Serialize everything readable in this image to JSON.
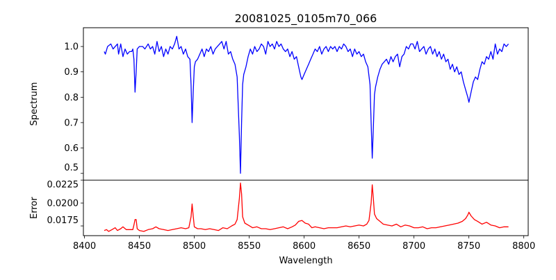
{
  "chart_data": [
    {
      "type": "line",
      "title": "20081025_0105m70_066",
      "xlabel": "",
      "ylabel": "Spectrum",
      "xlim": [
        8399,
        8804
      ],
      "ylim": [
        0.473,
        1.074
      ],
      "yticks": [
        "0.5",
        "0.6",
        "0.7",
        "0.8",
        "0.9",
        "1.0"
      ],
      "ytick_values": [
        0.5,
        0.6,
        0.7,
        0.8,
        0.9,
        1.0
      ],
      "color": "#0000ff",
      "x": [
        8418,
        8419,
        8421,
        8424,
        8426,
        8428,
        8430,
        8431,
        8433,
        8435,
        8437,
        8439,
        8441,
        8443,
        8444,
        8445,
        8446,
        8447,
        8448,
        8450,
        8453,
        8455,
        8458,
        8460,
        8462,
        8464,
        8466,
        8468,
        8470,
        8472,
        8474,
        8476,
        8478,
        8480,
        8482,
        8484,
        8486,
        8488,
        8490,
        8492,
        8494,
        8496,
        8497,
        8498,
        8499,
        8500,
        8501,
        8503,
        8505,
        8507,
        8509,
        8511,
        8513,
        8515,
        8517,
        8519,
        8521,
        8523,
        8525,
        8527,
        8529,
        8531,
        8533,
        8535,
        8537,
        8539,
        8541,
        8542,
        8543,
        8544,
        8545,
        8547,
        8549,
        8551,
        8553,
        8555,
        8557,
        8559,
        8561,
        8563,
        8565,
        8567,
        8569,
        8571,
        8573,
        8575,
        8577,
        8579,
        8581,
        8583,
        8585,
        8587,
        8589,
        8591,
        8593,
        8595,
        8597,
        8598,
        8600,
        8602,
        8604,
        8606,
        8608,
        8610,
        8612,
        8614,
        8616,
        8618,
        8620,
        8622,
        8624,
        8626,
        8628,
        8630,
        8632,
        8634,
        8636,
        8638,
        8640,
        8642,
        8644,
        8646,
        8648,
        8650,
        8652,
        8654,
        8656,
        8658,
        8660,
        8661,
        8662,
        8663,
        8664,
        8665,
        8667,
        8669,
        8671,
        8673,
        8675,
        8677,
        8679,
        8681,
        8683,
        8685,
        8687,
        8689,
        8691,
        8693,
        8695,
        8697,
        8699,
        8701,
        8703,
        8705,
        8707,
        8709,
        8711,
        8713,
        8715,
        8717,
        8719,
        8721,
        8723,
        8725,
        8727,
        8729,
        8731,
        8733,
        8735,
        8737,
        8739,
        8741,
        8743,
        8745,
        8747,
        8749,
        8750,
        8752,
        8754,
        8756,
        8758,
        8760,
        8762,
        8764,
        8766,
        8768,
        8770,
        8772,
        8774,
        8776,
        8778,
        8780,
        8782,
        8784,
        8786
      ],
      "y": [
        0.98,
        0.97,
        1.0,
        1.01,
        0.99,
        1.0,
        1.01,
        0.97,
        1.01,
        0.96,
        0.99,
        0.97,
        0.98,
        0.98,
        0.99,
        0.95,
        0.82,
        0.9,
        0.99,
        1.0,
        1.0,
        0.99,
        1.01,
        0.99,
        1.0,
        0.97,
        1.02,
        0.98,
        1.0,
        0.96,
        0.99,
        0.97,
        1.0,
        0.99,
        1.01,
        1.04,
        0.99,
        1.0,
        0.97,
        0.99,
        0.96,
        0.95,
        0.85,
        0.7,
        0.82,
        0.92,
        0.94,
        0.95,
        0.97,
        0.99,
        0.96,
        0.99,
        0.98,
        1.0,
        0.97,
        0.99,
        1.0,
        1.01,
        1.02,
        0.99,
        1.02,
        0.97,
        0.98,
        0.95,
        0.93,
        0.88,
        0.65,
        0.5,
        0.7,
        0.85,
        0.89,
        0.92,
        0.96,
        0.99,
        0.97,
        1.0,
        0.98,
        0.99,
        1.01,
        1.0,
        0.97,
        1.02,
        1.0,
        1.01,
        0.99,
        1.02,
        1.0,
        1.01,
        0.99,
        0.98,
        0.99,
        0.96,
        0.98,
        0.95,
        0.96,
        0.92,
        0.88,
        0.87,
        0.89,
        0.91,
        0.93,
        0.95,
        0.97,
        0.99,
        0.98,
        1.0,
        0.97,
        0.99,
        1.0,
        0.98,
        1.0,
        0.99,
        1.0,
        0.98,
        1.0,
        0.99,
        1.01,
        1.0,
        0.98,
        0.99,
        0.96,
        0.99,
        0.97,
        0.98,
        0.96,
        0.97,
        0.94,
        0.92,
        0.85,
        0.7,
        0.56,
        0.68,
        0.81,
        0.84,
        0.88,
        0.91,
        0.93,
        0.94,
        0.95,
        0.93,
        0.96,
        0.94,
        0.96,
        0.97,
        0.92,
        0.96,
        0.97,
        1.0,
        0.99,
        1.01,
        1.01,
        0.99,
        1.02,
        0.98,
        0.99,
        1.0,
        0.97,
        0.99,
        1.0,
        0.97,
        0.99,
        0.96,
        0.98,
        0.95,
        0.97,
        0.94,
        0.95,
        0.91,
        0.93,
        0.9,
        0.92,
        0.89,
        0.9,
        0.86,
        0.83,
        0.8,
        0.78,
        0.82,
        0.86,
        0.88,
        0.87,
        0.91,
        0.94,
        0.93,
        0.96,
        0.95,
        0.98,
        0.95,
        1.01,
        0.97,
        0.99,
        0.98,
        1.01,
        1.0,
        1.01
      ]
    },
    {
      "type": "line",
      "xlabel": "Wavelength",
      "ylabel": "Error",
      "xlim": [
        8399,
        8804
      ],
      "ylim": [
        0.01644,
        0.0225
      ],
      "xticks": [
        "8400",
        "8450",
        "8500",
        "8550",
        "8600",
        "8650",
        "8700",
        "8750",
        "8800"
      ],
      "xtick_values": [
        8400,
        8450,
        8500,
        8550,
        8600,
        8650,
        8700,
        8750,
        8800
      ],
      "yticks": [
        "0.0175",
        "0.0200",
        "0.0225"
      ],
      "ytick_values": [
        0.0175,
        0.02,
        0.0225
      ],
      "color": "#ff0000",
      "x": [
        8418,
        8420,
        8422,
        8425,
        8428,
        8430,
        8433,
        8435,
        8438,
        8441,
        8444,
        8445,
        8446,
        8447,
        8448,
        8450,
        8454,
        8458,
        8462,
        8465,
        8468,
        8472,
        8476,
        8480,
        8484,
        8488,
        8492,
        8495,
        8497,
        8498,
        8499,
        8500,
        8503,
        8506,
        8510,
        8514,
        8518,
        8522,
        8526,
        8530,
        8534,
        8537,
        8539,
        8541,
        8542,
        8543,
        8544,
        8546,
        8549,
        8553,
        8557,
        8561,
        8565,
        8569,
        8573,
        8577,
        8581,
        8585,
        8589,
        8592,
        8595,
        8598,
        8601,
        8604,
        8607,
        8610,
        8614,
        8618,
        8622,
        8626,
        8630,
        8634,
        8638,
        8642,
        8646,
        8650,
        8654,
        8657,
        8659,
        8661,
        8662,
        8663,
        8664,
        8666,
        8669,
        8672,
        8676,
        8680,
        8684,
        8688,
        8692,
        8696,
        8700,
        8704,
        8708,
        8712,
        8716,
        8720,
        8724,
        8728,
        8732,
        8736,
        8740,
        8744,
        8747,
        8749,
        8750,
        8752,
        8755,
        8758,
        8762,
        8766,
        8770,
        8774,
        8778,
        8782,
        8786
      ],
      "y": [
        0.017,
        0.0171,
        0.0169,
        0.0171,
        0.0173,
        0.017,
        0.0172,
        0.0174,
        0.0171,
        0.0171,
        0.0171,
        0.0176,
        0.0182,
        0.0182,
        0.0172,
        0.017,
        0.0169,
        0.0171,
        0.0172,
        0.0174,
        0.0172,
        0.0171,
        0.017,
        0.0171,
        0.0172,
        0.0173,
        0.0172,
        0.0173,
        0.0185,
        0.0199,
        0.0186,
        0.0174,
        0.0172,
        0.0172,
        0.0171,
        0.0172,
        0.0171,
        0.017,
        0.0173,
        0.0172,
        0.0175,
        0.0177,
        0.0182,
        0.0205,
        0.0222,
        0.021,
        0.0185,
        0.0178,
        0.0176,
        0.0173,
        0.0174,
        0.0172,
        0.0172,
        0.0171,
        0.0172,
        0.0173,
        0.0174,
        0.0172,
        0.0174,
        0.0176,
        0.018,
        0.0181,
        0.0178,
        0.0177,
        0.0173,
        0.0174,
        0.0173,
        0.0172,
        0.0173,
        0.0173,
        0.0173,
        0.0174,
        0.0175,
        0.0174,
        0.0175,
        0.0176,
        0.0175,
        0.0177,
        0.0181,
        0.02,
        0.022,
        0.0205,
        0.0188,
        0.0183,
        0.018,
        0.0177,
        0.0176,
        0.0175,
        0.0177,
        0.0174,
        0.0176,
        0.0175,
        0.0173,
        0.0173,
        0.0174,
        0.0172,
        0.0173,
        0.0173,
        0.0174,
        0.0175,
        0.0176,
        0.0177,
        0.0178,
        0.018,
        0.0183,
        0.0187,
        0.019,
        0.0186,
        0.0182,
        0.018,
        0.0177,
        0.0179,
        0.0176,
        0.0175,
        0.0173,
        0.0174,
        0.0174
      ]
    }
  ]
}
